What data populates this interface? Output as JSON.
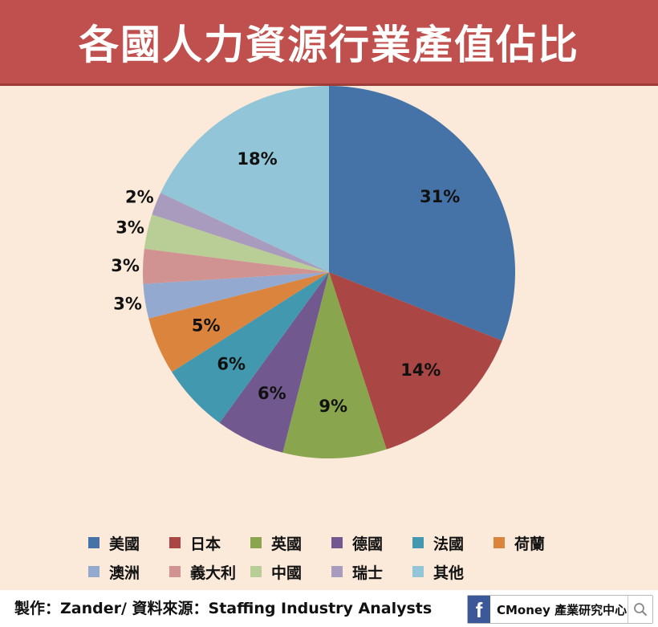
{
  "title": "各國人力資源行業產值佔比",
  "chart_data": {
    "type": "pie",
    "title": "各國人力資源行業產值佔比",
    "slices": [
      {
        "name": "美國",
        "value": 31,
        "label": "31%",
        "color": "#4572a7"
      },
      {
        "name": "日本",
        "value": 14,
        "label": "14%",
        "color": "#aa4643"
      },
      {
        "name": "英國",
        "value": 9,
        "label": "9%",
        "color": "#89a54e"
      },
      {
        "name": "德國",
        "value": 6,
        "label": "6%",
        "color": "#71588f"
      },
      {
        "name": "法國",
        "value": 6,
        "label": "6%",
        "color": "#4198af"
      },
      {
        "name": "荷蘭",
        "value": 5,
        "label": "5%",
        "color": "#db843d"
      },
      {
        "name": "澳洲",
        "value": 3,
        "label": "3%",
        "color": "#93a9cf"
      },
      {
        "name": "義大利",
        "value": 3,
        "label": "3%",
        "color": "#d19392"
      },
      {
        "name": "中國",
        "value": 3,
        "label": "3%",
        "color": "#b9cd96"
      },
      {
        "name": "瑞士",
        "value": 2,
        "label": "2%",
        "color": "#a99bbd"
      },
      {
        "name": "其他",
        "value": 18,
        "label": "18%",
        "color": "#92c5d8"
      }
    ],
    "legend_position": "bottom"
  },
  "footer": {
    "credit": "製作：Zander/ 資料來源：Staffing Industry Analysts",
    "brand": "CMoney 產業研究中心",
    "facebook_glyph": "f"
  },
  "colors": {
    "title_bar": "#c0504d",
    "background": "#fbe9da"
  }
}
